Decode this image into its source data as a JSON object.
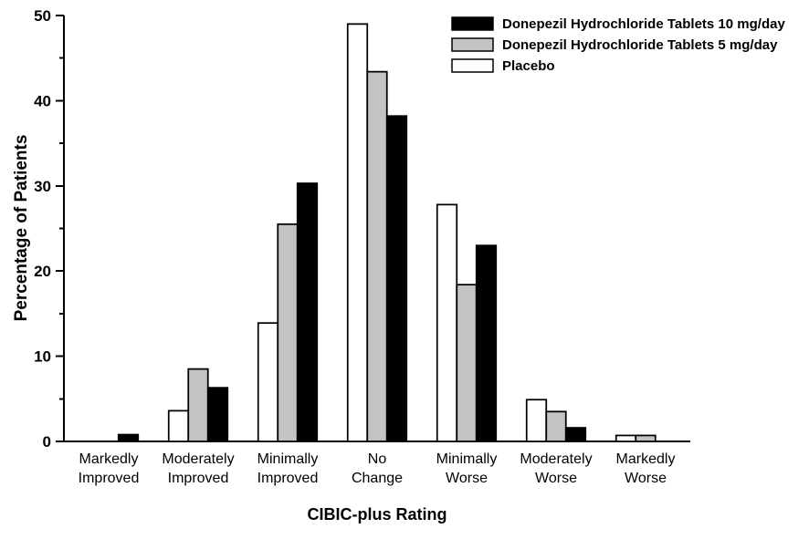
{
  "chart_data": {
    "type": "bar",
    "title": "",
    "xlabel": "CIBIC-plus Rating",
    "ylabel": "Percentage of Patients",
    "ylim": [
      0,
      50
    ],
    "y_major_ticks": [
      0,
      10,
      20,
      30,
      40,
      50
    ],
    "y_minor_ticks": [
      5,
      15,
      25,
      35,
      45
    ],
    "grid": false,
    "legend_position": "top-right",
    "categories": [
      [
        "Markedly",
        "Improved"
      ],
      [
        "Moderately",
        "Improved"
      ],
      [
        "Minimally",
        "Improved"
      ],
      [
        "No",
        "Change"
      ],
      [
        "Minimally",
        "Worse"
      ],
      [
        "Moderately",
        "Worse"
      ],
      [
        "Markedly",
        "Worse"
      ]
    ],
    "series": [
      {
        "name": "Placebo",
        "fill": "#ffffff",
        "stroke": "#000000",
        "values": [
          0,
          3.6,
          13.9,
          49.0,
          27.8,
          4.9,
          0.7
        ]
      },
      {
        "name": "Donepezil Hydrochloride Tablets 5 mg/day",
        "fill": "#c3c3c3",
        "stroke": "#000000",
        "values": [
          0,
          8.5,
          25.5,
          43.4,
          18.4,
          3.5,
          0.7
        ]
      },
      {
        "name": "Donepezil Hydrochloride Tablets 10 mg/day",
        "fill": "#000000",
        "stroke": "#000000",
        "values": [
          0.8,
          6.3,
          30.3,
          38.2,
          23.0,
          1.6,
          0
        ]
      }
    ],
    "legend_order": [
      2,
      1,
      0
    ]
  },
  "colors": {
    "axis": "#000000",
    "background": "#ffffff",
    "bar_black": "#000000",
    "bar_gray": "#c3c3c3",
    "bar_white": "#ffffff"
  }
}
